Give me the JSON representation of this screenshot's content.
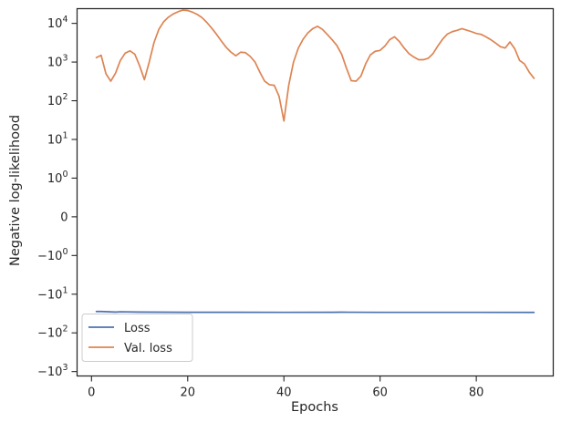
{
  "chart_data": {
    "type": "line",
    "xlabel": "Epochs",
    "ylabel": "Negative log-likelihood",
    "yscale": "symlog",
    "xlim": [
      -3,
      96
    ],
    "ylim": [
      -1300,
      24000
    ],
    "xticks": [
      0,
      20,
      40,
      60,
      80
    ],
    "yticks": [
      {
        "value": 10000,
        "base": "10",
        "exp": "4"
      },
      {
        "value": 1000,
        "base": "10",
        "exp": "3"
      },
      {
        "value": 100,
        "base": "10",
        "exp": "2"
      },
      {
        "value": 10,
        "base": "10",
        "exp": "1"
      },
      {
        "value": 1,
        "base": "10",
        "exp": "0"
      },
      {
        "value": 0,
        "base": "0",
        "exp": ""
      },
      {
        "value": -1,
        "base": "−10",
        "exp": "0"
      },
      {
        "value": -10,
        "base": "−10",
        "exp": "1"
      },
      {
        "value": -100,
        "base": "−10",
        "exp": "2"
      },
      {
        "value": -1000,
        "base": "−10",
        "exp": "3"
      }
    ],
    "legend_position": "lower-left",
    "grid": false,
    "series": [
      {
        "name": "Loss",
        "color": "#4c72b0",
        "x": [
          1,
          2,
          5,
          6,
          10,
          20,
          30,
          40,
          50,
          52,
          60,
          70,
          80,
          92
        ],
        "y": [
          -28,
          -28,
          -29,
          -28.5,
          -29,
          -29.3,
          -29.4,
          -29.5,
          -29.3,
          -29.2,
          -29.5,
          -29.5,
          -29.5,
          -29.6
        ]
      },
      {
        "name": "Val. loss",
        "color": "#dd8452",
        "x": [
          1,
          2,
          3,
          4,
          5,
          6,
          7,
          8,
          9,
          10,
          11,
          12,
          13,
          14,
          15,
          16,
          17,
          18,
          19,
          20,
          21,
          22,
          23,
          24,
          25,
          26,
          27,
          28,
          29,
          30,
          31,
          32,
          33,
          34,
          35,
          36,
          37,
          38,
          39,
          40,
          41,
          42,
          43,
          44,
          45,
          46,
          47,
          48,
          49,
          50,
          51,
          52,
          53,
          54,
          55,
          56,
          57,
          58,
          59,
          60,
          61,
          62,
          63,
          64,
          65,
          66,
          67,
          68,
          69,
          70,
          71,
          72,
          73,
          74,
          75,
          76,
          77,
          78,
          79,
          80,
          81,
          82,
          83,
          84,
          85,
          86,
          87,
          88,
          89,
          90,
          91,
          92
        ],
        "y": [
          1300,
          1500,
          500,
          320,
          520,
          1100,
          1700,
          1950,
          1600,
          800,
          350,
          1000,
          3200,
          7000,
          11000,
          14500,
          17500,
          20000,
          22000,
          21500,
          19500,
          17000,
          14000,
          10500,
          7500,
          5200,
          3500,
          2400,
          1800,
          1450,
          1800,
          1750,
          1400,
          1000,
          550,
          320,
          260,
          250,
          130,
          30,
          250,
          1000,
          2300,
          3900,
          5700,
          7300,
          8400,
          7000,
          5200,
          3800,
          2700,
          1600,
          700,
          330,
          320,
          430,
          900,
          1550,
          1900,
          2000,
          2600,
          3800,
          4500,
          3400,
          2300,
          1650,
          1350,
          1150,
          1150,
          1250,
          1650,
          2600,
          3900,
          5300,
          6100,
          6600,
          7300,
          6700,
          6100,
          5500,
          5200,
          4500,
          3800,
          3100,
          2500,
          2300,
          3300,
          2200,
          1100,
          900,
          550,
          380
        ]
      }
    ]
  }
}
